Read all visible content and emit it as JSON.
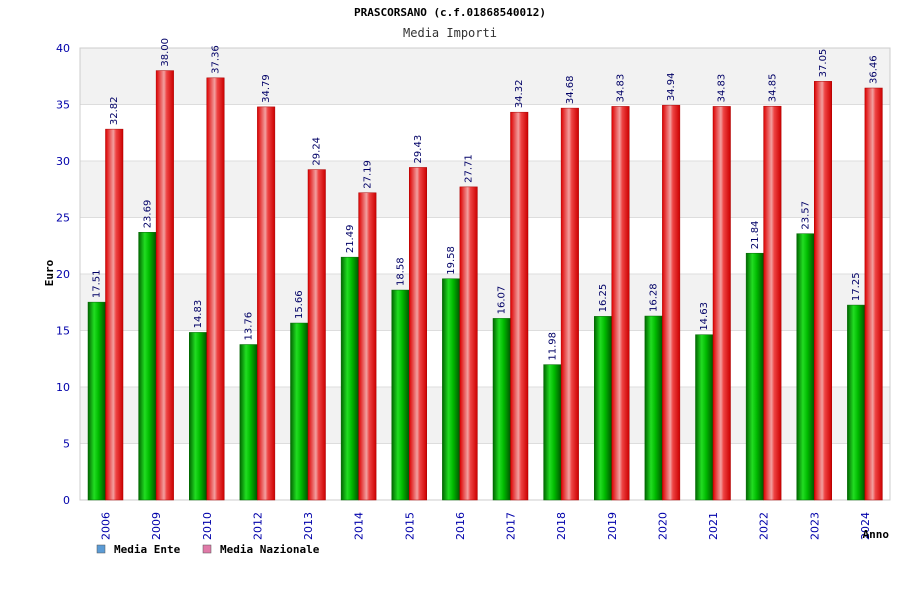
{
  "chart_data": {
    "type": "bar",
    "title": "PRASCORSANO (c.f.01868540012)",
    "subtitle": "Media Importi",
    "xlabel": "Anno",
    "ylabel": "Euro",
    "ylim": [
      0,
      40
    ],
    "yticks": [
      "0",
      "5",
      "10",
      "15",
      "20",
      "25",
      "30",
      "35",
      "40"
    ],
    "grid": true,
    "legend_position": "bottom-left",
    "categories": [
      "2006",
      "2009",
      "2010",
      "2012",
      "2013",
      "2014",
      "2015",
      "2016",
      "2017",
      "2018",
      "2019",
      "2020",
      "2021",
      "2022",
      "2023",
      "2024"
    ],
    "series": [
      {
        "name": "Media Ente",
        "legend_color": "#5b9bd5",
        "bar_color": "#00aa00",
        "values": [
          17.51,
          23.69,
          14.83,
          13.76,
          15.66,
          21.49,
          18.58,
          19.58,
          16.07,
          11.98,
          16.25,
          16.28,
          14.63,
          21.84,
          23.57,
          17.25
        ],
        "labels": [
          "17.51",
          "23.69",
          "14.83",
          "13.76",
          "15.66",
          "21.49",
          "18.58",
          "19.58",
          "16.07",
          "11.98",
          "16.25",
          "16.28",
          "14.63",
          "21.84",
          "23.57",
          "17.25"
        ]
      },
      {
        "name": "Media Nazionale",
        "legend_color": "#e07aa8",
        "bar_color": "#ee0000",
        "values": [
          32.82,
          38.0,
          37.36,
          34.79,
          29.24,
          27.19,
          29.43,
          27.71,
          34.32,
          34.68,
          34.83,
          34.94,
          34.83,
          34.85,
          37.05,
          36.46
        ],
        "labels": [
          "32.82",
          "38.00",
          "37.36",
          "34.79",
          "29.24",
          "27.19",
          "29.43",
          "27.71",
          "34.32",
          "34.68",
          "34.83",
          "34.94",
          "34.83",
          "34.85",
          "37.05",
          "36.46"
        ]
      }
    ]
  }
}
